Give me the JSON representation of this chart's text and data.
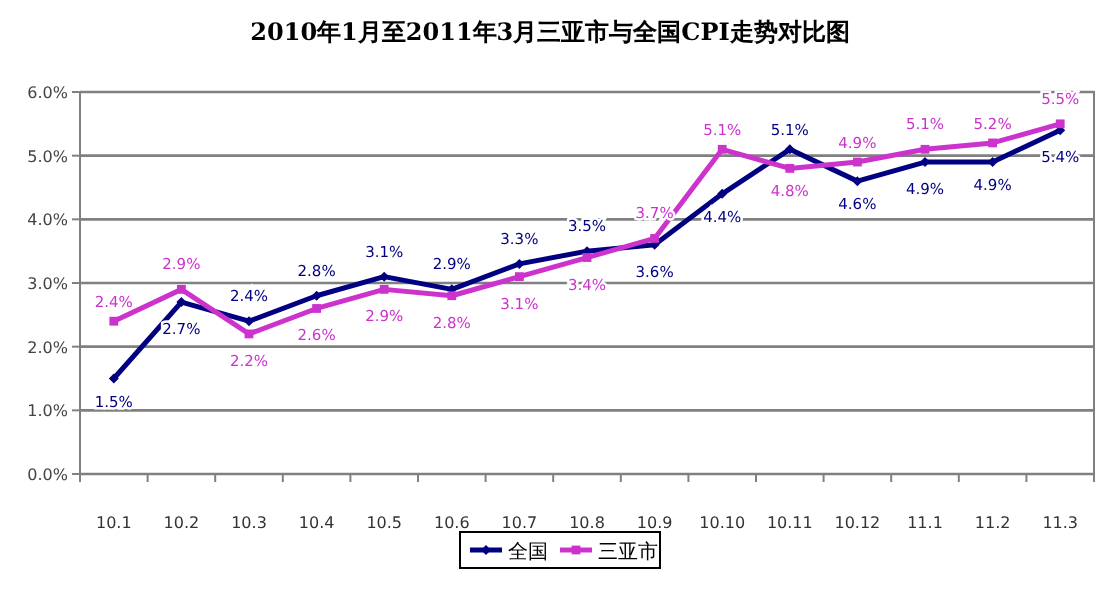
{
  "chart_data": {
    "type": "line",
    "title": "2010年1月至2011年3月三亚市与全国CPI走势对比图",
    "categories": [
      "10.1",
      "10.2",
      "10.3",
      "10.4",
      "10.5",
      "10.6",
      "10.7",
      "10.8",
      "10.9",
      "10.10",
      "10.11",
      "10.12",
      "11.1",
      "11.2",
      "11.3"
    ],
    "series": [
      {
        "name": "全国",
        "color": "#000080",
        "marker": "diamond",
        "values": [
          1.5,
          2.7,
          2.4,
          2.8,
          3.1,
          2.9,
          3.3,
          3.5,
          3.6,
          4.4,
          5.1,
          4.6,
          4.9,
          4.9,
          5.4
        ],
        "value_labels": [
          "1.5%",
          "2.7%",
          "2.4%",
          "2.8%",
          "3.1%",
          "2.9%",
          "3.3%",
          "3.5%",
          "3.6%",
          "4.4%",
          "5.1%",
          "4.6%",
          "4.9%",
          "4.9%",
          "5.4%"
        ]
      },
      {
        "name": "三亚市",
        "color": "#cc33cc",
        "marker": "square",
        "values": [
          2.4,
          2.9,
          2.2,
          2.6,
          2.9,
          2.8,
          3.1,
          3.4,
          3.7,
          5.1,
          4.8,
          4.9,
          5.1,
          5.2,
          5.5
        ],
        "value_labels": [
          "2.4%",
          "2.9%",
          "2.2%",
          "2.6%",
          "2.9%",
          "2.8%",
          "3.1%",
          "3.4%",
          "3.7%",
          "5.1%",
          "4.8%",
          "4.9%",
          "5.1%",
          "5.2%",
          "5.5%"
        ]
      }
    ],
    "ylim": [
      0,
      6
    ],
    "yticks": [
      {
        "value": 0,
        "label": "0.0%"
      },
      {
        "value": 1,
        "label": "1.0%"
      },
      {
        "value": 2,
        "label": "2.0%"
      },
      {
        "value": 3,
        "label": "3.0%"
      },
      {
        "value": 4,
        "label": "4.0%"
      },
      {
        "value": 5,
        "label": "5.0%"
      },
      {
        "value": 6,
        "label": "6.0%"
      }
    ],
    "grid": "y",
    "legend": "bottom"
  }
}
